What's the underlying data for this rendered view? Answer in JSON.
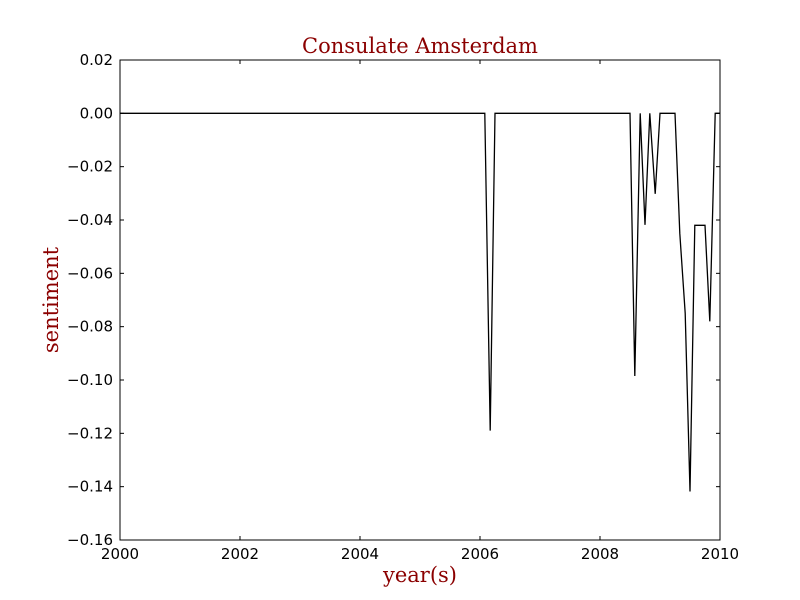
{
  "chart_data": {
    "type": "line",
    "title": "Consulate Amsterdam",
    "xlabel": "year(s)",
    "ylabel": "sentiment",
    "xlim": [
      2000,
      2010
    ],
    "ylim": [
      -0.16,
      0.02
    ],
    "x_ticks": [
      2000,
      2002,
      2004,
      2006,
      2008,
      2010
    ],
    "y_ticks": [
      0.02,
      0.0,
      -0.02,
      -0.04,
      -0.06,
      -0.08,
      -0.1,
      -0.12,
      -0.14,
      -0.16
    ],
    "x_tick_labels": [
      "2000",
      "2002",
      "2004",
      "2006",
      "2008",
      "2010"
    ],
    "y_tick_labels": [
      "0.02",
      "0.00",
      "−0.02",
      "−0.04",
      "−0.06",
      "−0.08",
      "−0.10",
      "−0.12",
      "−0.14",
      "−0.16"
    ],
    "grid": false,
    "legend": "none",
    "series": [
      {
        "color": "#000000",
        "points": [
          [
            2000.0,
            0.0
          ],
          [
            2006.08,
            0.0
          ],
          [
            2006.17,
            -0.119
          ],
          [
            2006.25,
            0.0
          ],
          [
            2008.5,
            0.0
          ],
          [
            2008.58,
            -0.0985
          ],
          [
            2008.67,
            0.0
          ],
          [
            2008.75,
            -0.0418
          ],
          [
            2008.83,
            0.0
          ],
          [
            2008.92,
            -0.0302
          ],
          [
            2009.0,
            0.0
          ],
          [
            2009.25,
            0.0
          ],
          [
            2009.33,
            -0.045
          ],
          [
            2009.42,
            -0.075
          ],
          [
            2009.5,
            -0.1418
          ],
          [
            2009.58,
            -0.042
          ],
          [
            2009.75,
            -0.042
          ],
          [
            2009.83,
            -0.078
          ],
          [
            2009.92,
            0.0
          ],
          [
            2010.0,
            0.0
          ]
        ]
      }
    ],
    "colors": {
      "title": "#8b0000",
      "axis_label": "#8b0000",
      "line": "#000000",
      "frame": "#000000"
    }
  }
}
